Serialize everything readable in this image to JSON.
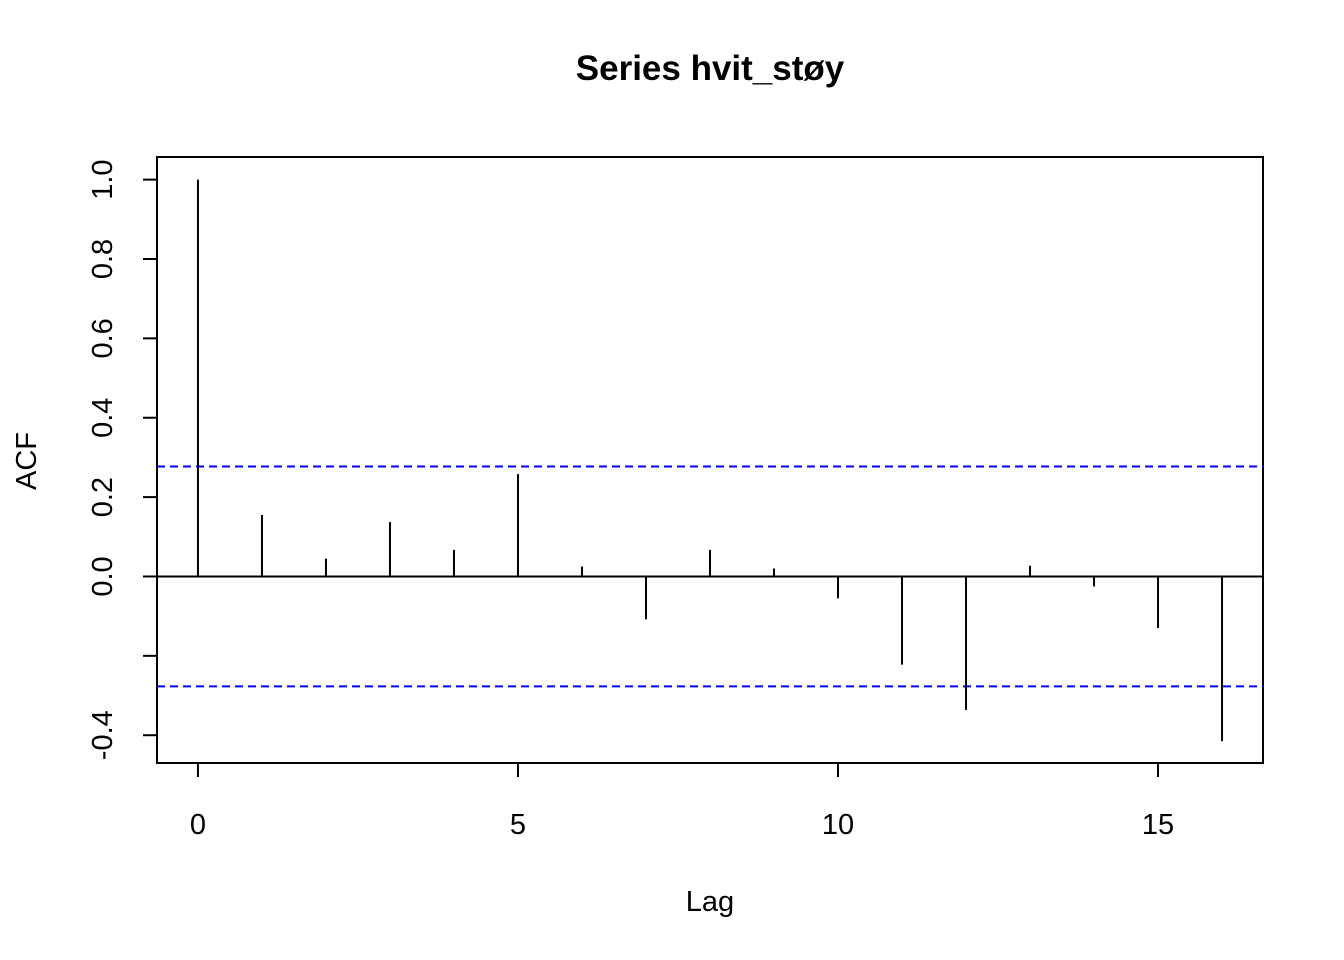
{
  "chart_data": {
    "type": "bar",
    "title": "Series  hvit_støy",
    "xlabel": "Lag",
    "ylabel": "ACF",
    "x": [
      0,
      1,
      2,
      3,
      4,
      5,
      6,
      7,
      8,
      9,
      10,
      11,
      12,
      13,
      14,
      15,
      16
    ],
    "values": [
      1.0,
      0.155,
      0.045,
      0.137,
      0.067,
      0.258,
      0.025,
      -0.108,
      0.067,
      0.02,
      -0.055,
      -0.222,
      -0.336,
      0.027,
      -0.025,
      -0.13,
      -0.415
    ],
    "confidence_bounds": [
      0.277,
      -0.277
    ],
    "xlim": [
      -0.64,
      16.64
    ],
    "ylim": [
      -0.47,
      1.057
    ],
    "xticks": [
      0,
      5,
      10,
      15
    ],
    "yticks": [
      -0.4,
      -0.2,
      0.0,
      0.2,
      0.4,
      0.6,
      0.8,
      1.0
    ],
    "ytick_labels": [
      "-0.4",
      "",
      "0.0",
      "0.2",
      "0.4",
      "0.6",
      "0.8",
      "1.0"
    ],
    "colors": {
      "bars": "#000000",
      "confidence_line": "#0000ff",
      "zero_line": "#000000"
    },
    "grid": false
  }
}
